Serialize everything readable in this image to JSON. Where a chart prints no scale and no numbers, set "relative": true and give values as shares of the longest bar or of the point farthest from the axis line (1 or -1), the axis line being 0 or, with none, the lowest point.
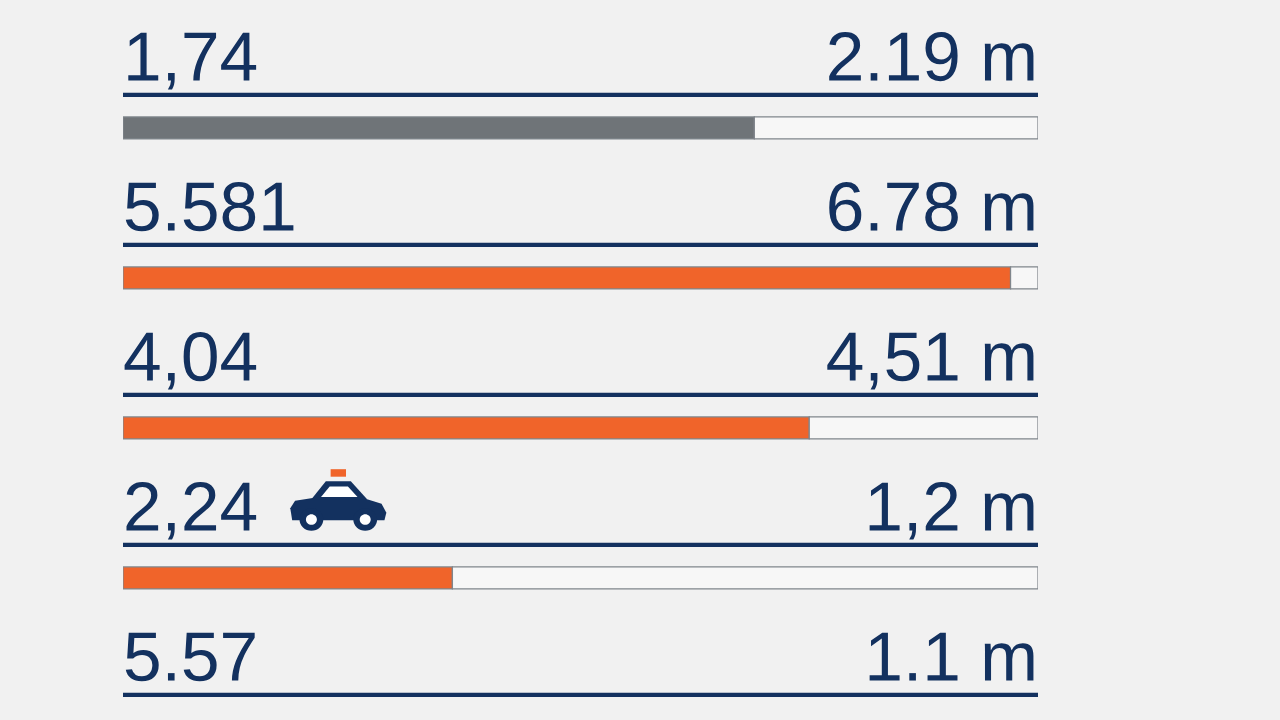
{
  "chart_data": {
    "type": "bar",
    "orientation": "horizontal",
    "stacked": true,
    "relative": true,
    "categories": [
      "1,74",
      "5.581",
      "4,04",
      "2,24",
      "5.57"
    ],
    "series": [
      {
        "colors": [
          "#6f7478",
          "#f0642a",
          "#f0642a",
          "#f0642a",
          null
        ],
        "values": [
          0.69,
          0.97,
          0.75,
          0.36,
          null
        ]
      },
      {
        "color": "#f7f7f7",
        "values": [
          0.31,
          0.03,
          0.25,
          0.64,
          null
        ]
      }
    ],
    "ref_lines": [
      {
        "axis": "y",
        "value": "1,74",
        "color": "#13315f"
      },
      {
        "axis": "y",
        "value": "5.581",
        "color": "#13315f"
      },
      {
        "axis": "y",
        "value": "4,04",
        "color": "#13315f"
      },
      {
        "axis": "y",
        "value": "2,24",
        "color": "#13315f"
      },
      {
        "axis": "y",
        "value": "5.57",
        "color": "#13315f"
      }
    ],
    "annotations": [
      "2.19 m",
      "6.78 m",
      "4,51 m",
      "1,2 m",
      "1.1 m"
    ]
  }
}
